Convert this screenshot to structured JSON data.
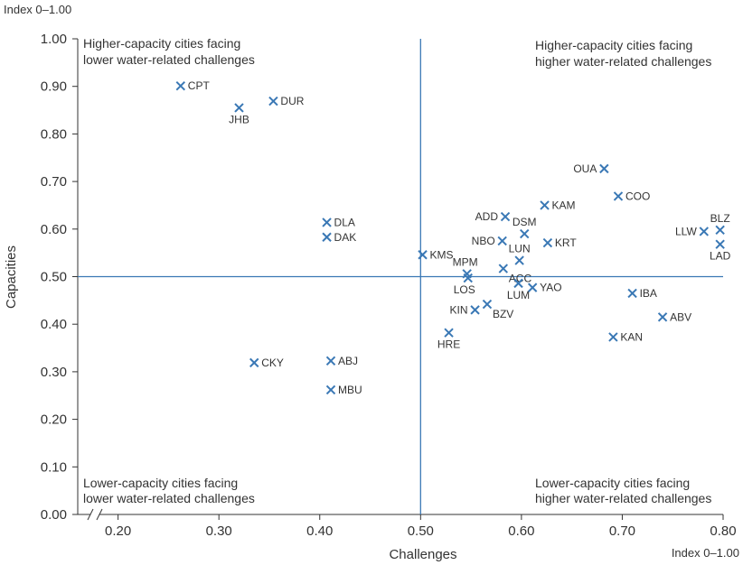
{
  "chart_data": {
    "type": "scatter",
    "xlabel": "Challenges",
    "ylabel": "Capacities",
    "x_unit_label": "Index 0–1.00",
    "y_unit_label": "Index 0–1.00",
    "xlim": [
      0.16,
      0.8
    ],
    "ylim": [
      0.0,
      1.0
    ],
    "x_ticks": [
      "0.20",
      "0.30",
      "0.40",
      "0.50",
      "0.60",
      "0.70",
      "0.80"
    ],
    "y_ticks": [
      "0.00",
      "0.10",
      "0.20",
      "0.30",
      "0.40",
      "0.50",
      "0.60",
      "0.70",
      "0.80",
      "0.90",
      "1.00"
    ],
    "x_axis_break": true,
    "reference_lines": {
      "x": 0.5,
      "y": 0.5
    },
    "grid": false,
    "quadrant_labels": {
      "top_left": [
        "Higher-capacity cities facing",
        "lower water-related challenges"
      ],
      "top_right": [
        "Higher-capacity cities facing",
        "higher water-related challenges"
      ],
      "bottom_left": [
        "Lower-capacity cities facing",
        "lower water-related challenges"
      ],
      "bottom_right": [
        "Lower-capacity cities facing",
        "higher water-related challenges"
      ]
    },
    "points": [
      {
        "label": "CPT",
        "x": 0.262,
        "y": 0.901,
        "label_pos": "right"
      },
      {
        "label": "JHB",
        "x": 0.32,
        "y": 0.855,
        "label_pos": "below"
      },
      {
        "label": "DUR",
        "x": 0.354,
        "y": 0.869,
        "label_pos": "right"
      },
      {
        "label": "DLA",
        "x": 0.407,
        "y": 0.614,
        "label_pos": "right"
      },
      {
        "label": "DAK",
        "x": 0.407,
        "y": 0.583,
        "label_pos": "right"
      },
      {
        "label": "CKY",
        "x": 0.335,
        "y": 0.319,
        "label_pos": "right"
      },
      {
        "label": "ABJ",
        "x": 0.411,
        "y": 0.323,
        "label_pos": "right"
      },
      {
        "label": "MBU",
        "x": 0.411,
        "y": 0.262,
        "label_pos": "right"
      },
      {
        "label": "KMS",
        "x": 0.502,
        "y": 0.546,
        "label_pos": "right"
      },
      {
        "label": "MPM",
        "x": 0.546,
        "y": 0.506,
        "label_pos": "above-left"
      },
      {
        "label": "LOS",
        "x": 0.547,
        "y": 0.497,
        "label_pos": "below-left"
      },
      {
        "label": "ADD",
        "x": 0.584,
        "y": 0.626,
        "label_pos": "left"
      },
      {
        "label": "NBO",
        "x": 0.581,
        "y": 0.575,
        "label_pos": "left"
      },
      {
        "label": "DSM",
        "x": 0.603,
        "y": 0.59,
        "label_pos": "above"
      },
      {
        "label": "LUN",
        "x": 0.598,
        "y": 0.534,
        "label_pos": "above"
      },
      {
        "label": "ACC",
        "x": 0.582,
        "y": 0.517,
        "label_pos": "below-right"
      },
      {
        "label": "KAM",
        "x": 0.623,
        "y": 0.65,
        "label_pos": "right"
      },
      {
        "label": "KRT",
        "x": 0.626,
        "y": 0.571,
        "label_pos": "right"
      },
      {
        "label": "LUM",
        "x": 0.597,
        "y": 0.486,
        "label_pos": "below"
      },
      {
        "label": "YAO",
        "x": 0.611,
        "y": 0.477,
        "label_pos": "right"
      },
      {
        "label": "BZV",
        "x": 0.566,
        "y": 0.442,
        "label_pos": "below-right"
      },
      {
        "label": "KIN",
        "x": 0.554,
        "y": 0.43,
        "label_pos": "left"
      },
      {
        "label": "HRE",
        "x": 0.528,
        "y": 0.382,
        "label_pos": "below"
      },
      {
        "label": "OUA",
        "x": 0.682,
        "y": 0.727,
        "label_pos": "left"
      },
      {
        "label": "COO",
        "x": 0.696,
        "y": 0.669,
        "label_pos": "right"
      },
      {
        "label": "LLW",
        "x": 0.781,
        "y": 0.595,
        "label_pos": "left"
      },
      {
        "label": "BLZ",
        "x": 0.797,
        "y": 0.598,
        "label_pos": "above"
      },
      {
        "label": "LAD",
        "x": 0.797,
        "y": 0.568,
        "label_pos": "below"
      },
      {
        "label": "IBA",
        "x": 0.71,
        "y": 0.465,
        "label_pos": "right"
      },
      {
        "label": "ABV",
        "x": 0.74,
        "y": 0.415,
        "label_pos": "right"
      },
      {
        "label": "KAN",
        "x": 0.691,
        "y": 0.373,
        "label_pos": "right"
      }
    ],
    "colors": {
      "marker": "#3a78b5",
      "reference_line": "#3a78b5",
      "axis": "#333333",
      "text": "#333333"
    }
  }
}
